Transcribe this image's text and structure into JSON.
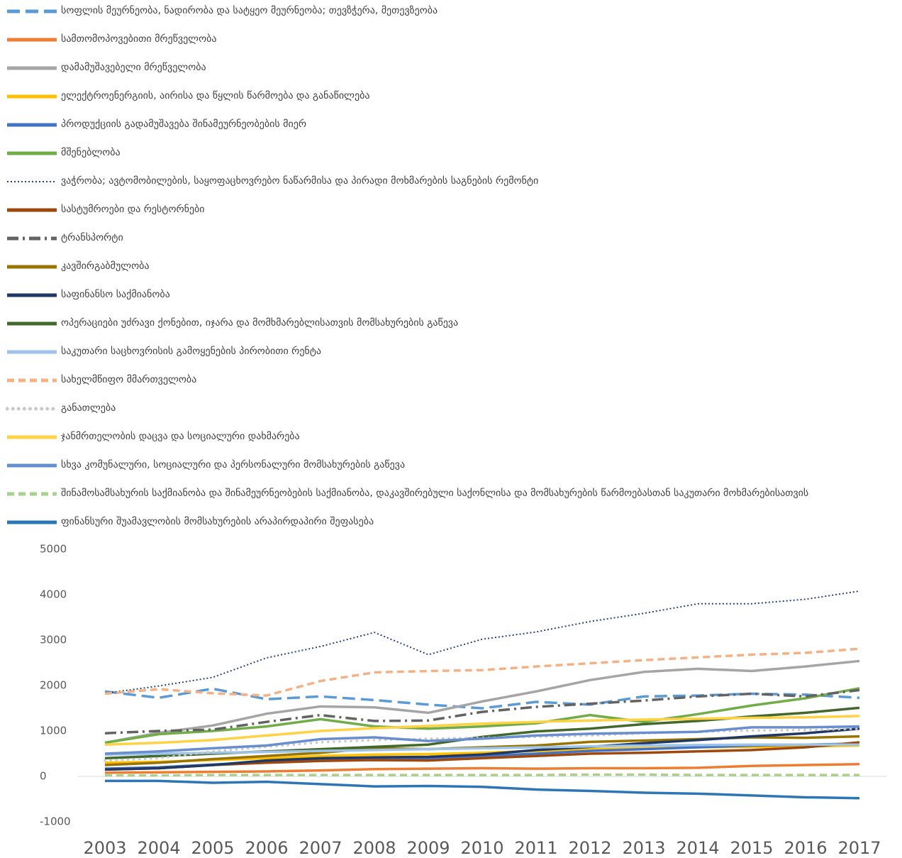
{
  "chart_data": {
    "type": "line",
    "categories": [
      "2003",
      "2004",
      "2005",
      "2006",
      "2007",
      "2008",
      "2009",
      "2010",
      "2011",
      "2012",
      "2013",
      "2014",
      "2015",
      "2016",
      "2017"
    ],
    "ylim": [
      -1000,
      5000
    ],
    "yticks": [
      -1000,
      0,
      1000,
      2000,
      3000,
      4000,
      5000
    ],
    "grid": false,
    "legend": "top",
    "series": [
      {
        "name": "სოფლის მეურნეობა, ნადირობა და სატყეო მეურნეობა; თევზჭერა, მეთევზეობა",
        "color": "#5b9bd5",
        "dash": "longdash",
        "values": [
          1870,
          1730,
          1930,
          1700,
          1760,
          1680,
          1580,
          1500,
          1640,
          1580,
          1760,
          1780,
          1820,
          1800,
          1730
        ]
      },
      {
        "name": "სამთომოპოვებითი მრეწველობა",
        "color": "#ed7d31",
        "dash": "solid",
        "values": [
          80,
          90,
          100,
          110,
          130,
          160,
          170,
          180,
          170,
          180,
          180,
          190,
          230,
          250,
          270
        ]
      },
      {
        "name": "დამამუშავებელი მრეწველობა",
        "color": "#a5a5a5",
        "dash": "solid",
        "values": [
          740,
          960,
          1120,
          1380,
          1540,
          1520,
          1400,
          1650,
          1870,
          2120,
          2300,
          2370,
          2320,
          2420,
          2540
        ]
      },
      {
        "name": "ელექტროენერგიის, აირისა და წყლის წარმოება და განაწილება",
        "color": "#ffc000",
        "dash": "solid",
        "values": [
          300,
          320,
          360,
          400,
          450,
          480,
          490,
          520,
          560,
          600,
          620,
          640,
          650,
          660,
          680
        ]
      },
      {
        "name": "პროდუქციის გადამუშავება შინამეურნეობების მიერ",
        "color": "#4472c4",
        "dash": "solid",
        "values": [
          170,
          200,
          260,
          320,
          380,
          400,
          400,
          450,
          500,
          560,
          600,
          640,
          680,
          700,
          720
        ]
      },
      {
        "name": "მშენებლობა",
        "color": "#70ad47",
        "dash": "solid",
        "values": [
          740,
          930,
          1000,
          1100,
          1260,
          1100,
          1050,
          1100,
          1170,
          1350,
          1200,
          1370,
          1560,
          1720,
          1940
        ]
      },
      {
        "name": "ვაჭრობა; ავტომობილების, საყოფაცხოვრებო ნაწარმისა და პირადი მოხმარების საგნების რემონტი",
        "color": "#264478",
        "dash": "dot",
        "values": [
          1830,
          1990,
          2180,
          2610,
          2860,
          3170,
          2680,
          3020,
          3180,
          3410,
          3590,
          3800,
          3800,
          3900,
          4080
        ]
      },
      {
        "name": "სასტუმროები და რესტორნები",
        "color": "#9e480e",
        "dash": "solid",
        "values": [
          150,
          180,
          250,
          300,
          340,
          360,
          350,
          400,
          450,
          500,
          520,
          550,
          580,
          640,
          750
        ]
      },
      {
        "name": "ტრანსპორტი",
        "color": "#636363",
        "dash": "dashdot",
        "values": [
          950,
          1000,
          1030,
          1200,
          1350,
          1220,
          1230,
          1420,
          1530,
          1600,
          1670,
          1760,
          1820,
          1760,
          1900
        ]
      },
      {
        "name": "კავშირგაბმულობა",
        "color": "#997300",
        "dash": "solid",
        "values": [
          250,
          300,
          380,
          450,
          520,
          620,
          600,
          640,
          680,
          760,
          790,
          820,
          860,
          850,
          880
        ]
      },
      {
        "name": "საფინანსო საქმიანობა",
        "color": "#203864",
        "dash": "solid",
        "values": [
          150,
          180,
          250,
          350,
          400,
          420,
          430,
          480,
          580,
          650,
          730,
          800,
          880,
          950,
          1050
        ]
      },
      {
        "name": "ოპერაციები უძრავი ქონებით, იჯარა და მომხმარებლისათვის მომსახურების გაწევა",
        "color": "#43682b",
        "dash": "solid",
        "values": [
          400,
          450,
          500,
          550,
          600,
          650,
          700,
          870,
          990,
          1050,
          1150,
          1220,
          1320,
          1400,
          1510
        ]
      },
      {
        "name": "საკუთარი საცხოვრისის გამოყენების პირობითი რენტა",
        "color": "#9dc3e6",
        "dash": "solid",
        "values": [
          480,
          500,
          520,
          540,
          560,
          580,
          600,
          620,
          640,
          660,
          680,
          690,
          700,
          700,
          700
        ]
      },
      {
        "name": "სახელმწიფო მმართველობა",
        "color": "#f4b183",
        "dash": "dash",
        "values": [
          1820,
          1920,
          1830,
          1780,
          2100,
          2290,
          2320,
          2340,
          2420,
          2490,
          2560,
          2620,
          2680,
          2720,
          2810
        ]
      },
      {
        "name": "განათლება",
        "color": "#c9c9c9",
        "dash": "roundDot",
        "values": [
          350,
          400,
          550,
          650,
          750,
          800,
          830,
          850,
          870,
          900,
          950,
          980,
          1010,
          1020,
          1050
        ]
      },
      {
        "name": "ჯანმრთელობის დაცვა და სოციალური დახმარება",
        "color": "#ffd243",
        "dash": "solid",
        "values": [
          700,
          740,
          800,
          900,
          1000,
          1060,
          1110,
          1160,
          1200,
          1230,
          1250,
          1270,
          1290,
          1300,
          1330
        ]
      },
      {
        "name": "სხვა კომუნალური, სოციალური და პერსონალური მომსახურების გაწევა",
        "color": "#698ed0",
        "dash": "solid",
        "values": [
          500,
          550,
          620,
          680,
          820,
          860,
          780,
          830,
          900,
          940,
          960,
          980,
          1080,
          1080,
          1100
        ]
      },
      {
        "name": "შინამოსამსახურის საქმიანობა და შინამეურნეობების საქმიანობა, დაკავშირებული საქონლისა და მომსახურების წარმოებასთან საკუთარი მოხმარებისათვის",
        "color": "#a9d18e",
        "dash": "dash",
        "values": [
          20,
          20,
          30,
          30,
          30,
          30,
          30,
          30,
          30,
          40,
          40,
          30,
          30,
          30,
          30
        ]
      },
      {
        "name": "ფინანსური შუამავლობის მომსახურების არაპირდაპირი შეფასება",
        "color": "#2e75b6",
        "dash": "solid",
        "values": [
          -100,
          -100,
          -140,
          -120,
          -170,
          -220,
          -210,
          -230,
          -290,
          -320,
          -360,
          -380,
          -420,
          -460,
          -480
        ]
      }
    ]
  }
}
